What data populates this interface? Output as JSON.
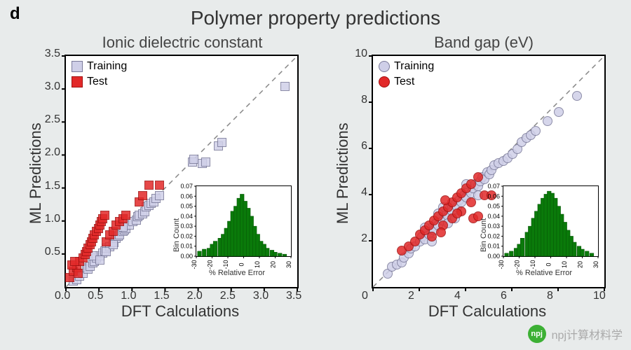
{
  "panel_letter": "d",
  "main_title": "Polymer property predictions",
  "colors": {
    "training_fill": "#cfcfe8",
    "training_stroke": "#7a7a99",
    "test_fill": "#e22929",
    "test_stroke": "#a01010",
    "diagonal": "#888",
    "hist_fill": "#0a7a0a",
    "hist_stroke": "#065006",
    "plot_bg": "#ffffff",
    "axis": "#000"
  },
  "left_plot": {
    "subtitle": "Ionic dielectric constant",
    "xlabel": "DFT Calculations",
    "ylabel": "ML Predictions",
    "xlim": [
      0,
      3.5
    ],
    "ylim": [
      0,
      3.5
    ],
    "xticks": [
      0.0,
      0.5,
      1.0,
      1.5,
      2.0,
      2.5,
      3.0,
      3.5
    ],
    "yticks": [
      0.5,
      1.0,
      1.5,
      2.0,
      2.5,
      3.0,
      3.5
    ],
    "marker": "square",
    "marker_size": 11,
    "legend": [
      "Training",
      "Test"
    ],
    "training": [
      [
        0.1,
        0.1
      ],
      [
        0.15,
        0.12
      ],
      [
        0.2,
        0.18
      ],
      [
        0.25,
        0.22
      ],
      [
        0.3,
        0.3
      ],
      [
        0.32,
        0.28
      ],
      [
        0.35,
        0.32
      ],
      [
        0.4,
        0.38
      ],
      [
        0.42,
        0.4
      ],
      [
        0.45,
        0.45
      ],
      [
        0.5,
        0.48
      ],
      [
        0.55,
        0.52
      ],
      [
        0.58,
        0.56
      ],
      [
        0.6,
        0.6
      ],
      [
        0.65,
        0.62
      ],
      [
        0.7,
        0.7
      ],
      [
        0.72,
        0.68
      ],
      [
        0.75,
        0.75
      ],
      [
        0.78,
        0.78
      ],
      [
        0.8,
        0.8
      ],
      [
        0.85,
        0.85
      ],
      [
        0.88,
        0.88
      ],
      [
        0.9,
        0.9
      ],
      [
        0.95,
        0.95
      ],
      [
        1.0,
        1.0
      ],
      [
        1.05,
        1.02
      ],
      [
        1.08,
        1.08
      ],
      [
        1.1,
        1.1
      ],
      [
        1.15,
        1.12
      ],
      [
        1.18,
        1.15
      ],
      [
        1.2,
        1.22
      ],
      [
        1.25,
        1.25
      ],
      [
        1.28,
        1.28
      ],
      [
        1.32,
        1.3
      ],
      [
        1.35,
        1.35
      ],
      [
        1.4,
        1.4
      ],
      [
        1.9,
        1.9
      ],
      [
        1.92,
        1.95
      ],
      [
        2.05,
        1.88
      ],
      [
        2.1,
        1.9
      ],
      [
        2.3,
        2.15
      ],
      [
        2.35,
        2.2
      ],
      [
        3.3,
        3.05
      ],
      [
        0.4,
        0.48
      ],
      [
        0.5,
        0.42
      ],
      [
        0.6,
        0.55
      ],
      [
        0.7,
        0.65
      ],
      [
        0.85,
        0.92
      ]
    ],
    "test": [
      [
        0.05,
        0.15
      ],
      [
        0.1,
        0.25
      ],
      [
        0.15,
        0.3
      ],
      [
        0.18,
        0.22
      ],
      [
        0.2,
        0.4
      ],
      [
        0.25,
        0.45
      ],
      [
        0.28,
        0.5
      ],
      [
        0.3,
        0.55
      ],
      [
        0.32,
        0.6
      ],
      [
        0.35,
        0.65
      ],
      [
        0.38,
        0.7
      ],
      [
        0.4,
        0.75
      ],
      [
        0.42,
        0.8
      ],
      [
        0.45,
        0.85
      ],
      [
        0.48,
        0.9
      ],
      [
        0.5,
        0.95
      ],
      [
        0.52,
        1.0
      ],
      [
        0.55,
        1.05
      ],
      [
        0.58,
        1.1
      ],
      [
        0.6,
        0.7
      ],
      [
        0.65,
        0.8
      ],
      [
        0.7,
        0.85
      ],
      [
        0.75,
        0.95
      ],
      [
        0.8,
        1.0
      ],
      [
        0.85,
        1.05
      ],
      [
        0.9,
        1.1
      ],
      [
        1.1,
        1.3
      ],
      [
        1.15,
        1.4
      ],
      [
        1.25,
        1.55
      ],
      [
        1.4,
        1.55
      ],
      [
        0.08,
        0.35
      ],
      [
        0.12,
        0.4
      ]
    ],
    "inset": {
      "ylabel": "Bin Count",
      "xlabel": "% Relative Error",
      "xlim": [
        -30,
        30
      ],
      "ylim": [
        0,
        0.07
      ],
      "xticks": [
        -30,
        -20,
        -10,
        0,
        10,
        20,
        30
      ],
      "yticks": [
        0.0,
        0.01,
        0.02,
        0.03,
        0.04,
        0.05,
        0.06,
        0.07
      ],
      "bars": [
        [
          -28,
          0.005
        ],
        [
          -25,
          0.007
        ],
        [
          -22,
          0.008
        ],
        [
          -20,
          0.012
        ],
        [
          -18,
          0.015
        ],
        [
          -15,
          0.018
        ],
        [
          -13,
          0.022
        ],
        [
          -11,
          0.028
        ],
        [
          -9,
          0.035
        ],
        [
          -7,
          0.045
        ],
        [
          -5,
          0.05
        ],
        [
          -3,
          0.058
        ],
        [
          -1,
          0.062
        ],
        [
          1,
          0.055
        ],
        [
          3,
          0.048
        ],
        [
          5,
          0.04
        ],
        [
          7,
          0.03
        ],
        [
          9,
          0.022
        ],
        [
          11,
          0.015
        ],
        [
          13,
          0.012
        ],
        [
          15,
          0.008
        ],
        [
          18,
          0.006
        ],
        [
          20,
          0.004
        ],
        [
          23,
          0.003
        ],
        [
          26,
          0.002
        ]
      ],
      "bar_width": 2.5
    }
  },
  "right_plot": {
    "subtitle": "Band gap (eV)",
    "xlabel": "DFT Calculations",
    "ylabel": "ML Predictions",
    "xlim": [
      0,
      10
    ],
    "ylim": [
      0,
      10
    ],
    "xticks": [
      0,
      2,
      4,
      6,
      8,
      10
    ],
    "yticks": [
      2,
      4,
      6,
      8,
      10
    ],
    "marker": "circle",
    "marker_size": 12,
    "legend": [
      "Training",
      "Test"
    ],
    "training": [
      [
        0.6,
        0.6
      ],
      [
        0.8,
        0.9
      ],
      [
        1.0,
        1.0
      ],
      [
        1.2,
        1.1
      ],
      [
        1.3,
        1.3
      ],
      [
        1.5,
        1.5
      ],
      [
        1.6,
        1.7
      ],
      [
        1.8,
        1.8
      ],
      [
        2.0,
        2.0
      ],
      [
        2.1,
        2.2
      ],
      [
        2.2,
        2.1
      ],
      [
        2.3,
        2.4
      ],
      [
        2.4,
        2.3
      ],
      [
        2.5,
        2.6
      ],
      [
        2.6,
        2.5
      ],
      [
        2.7,
        2.8
      ],
      [
        2.8,
        2.7
      ],
      [
        2.9,
        3.0
      ],
      [
        3.0,
        2.9
      ],
      [
        3.1,
        3.2
      ],
      [
        3.2,
        3.1
      ],
      [
        3.3,
        3.4
      ],
      [
        3.4,
        3.3
      ],
      [
        3.5,
        3.6
      ],
      [
        3.6,
        3.5
      ],
      [
        3.7,
        3.8
      ],
      [
        3.8,
        3.7
      ],
      [
        3.9,
        4.0
      ],
      [
        4.0,
        3.9
      ],
      [
        4.1,
        4.2
      ],
      [
        4.2,
        4.1
      ],
      [
        4.3,
        4.3
      ],
      [
        4.4,
        4.5
      ],
      [
        4.5,
        4.4
      ],
      [
        4.6,
        4.6
      ],
      [
        4.7,
        4.8
      ],
      [
        4.8,
        4.7
      ],
      [
        4.9,
        5.0
      ],
      [
        5.0,
        4.9
      ],
      [
        5.1,
        5.1
      ],
      [
        5.2,
        5.3
      ],
      [
        5.4,
        5.4
      ],
      [
        5.6,
        5.5
      ],
      [
        5.8,
        5.6
      ],
      [
        6.0,
        5.8
      ],
      [
        6.2,
        6.0
      ],
      [
        6.4,
        6.3
      ],
      [
        6.6,
        6.5
      ],
      [
        6.8,
        6.6
      ],
      [
        7.0,
        6.8
      ],
      [
        7.5,
        7.2
      ],
      [
        8.0,
        7.6
      ],
      [
        8.8,
        8.3
      ],
      [
        2.2,
        2.6
      ],
      [
        2.5,
        2.0
      ],
      [
        3.0,
        3.5
      ],
      [
        3.5,
        3.0
      ],
      [
        4.0,
        4.5
      ],
      [
        4.5,
        4.0
      ],
      [
        2.8,
        3.2
      ],
      [
        3.2,
        2.8
      ]
    ],
    "test": [
      [
        1.2,
        1.6
      ],
      [
        1.5,
        1.8
      ],
      [
        1.8,
        2.0
      ],
      [
        2.0,
        2.3
      ],
      [
        2.2,
        2.5
      ],
      [
        2.4,
        2.7
      ],
      [
        2.5,
        2.2
      ],
      [
        2.6,
        2.9
      ],
      [
        2.8,
        3.1
      ],
      [
        3.0,
        2.7
      ],
      [
        3.0,
        3.3
      ],
      [
        3.2,
        3.5
      ],
      [
        3.4,
        3.0
      ],
      [
        3.4,
        3.7
      ],
      [
        3.6,
        3.9
      ],
      [
        3.8,
        3.3
      ],
      [
        3.8,
        4.1
      ],
      [
        4.0,
        4.3
      ],
      [
        4.2,
        3.7
      ],
      [
        4.2,
        4.5
      ],
      [
        4.5,
        4.8
      ],
      [
        4.8,
        4.0
      ],
      [
        4.3,
        3.0
      ],
      [
        5.1,
        4.0
      ],
      [
        3.1,
        3.8
      ],
      [
        2.9,
        2.4
      ],
      [
        3.6,
        3.2
      ],
      [
        4.5,
        3.1
      ]
    ],
    "inset": {
      "ylabel": "Bin Count",
      "xlabel": "% Relative Error",
      "xlim": [
        -30,
        30
      ],
      "ylim": [
        0,
        0.07
      ],
      "xticks": [
        -30,
        -20,
        -10,
        0,
        10,
        20,
        30
      ],
      "yticks": [
        0.0,
        0.01,
        0.02,
        0.03,
        0.04,
        0.05,
        0.06,
        0.07
      ],
      "bars": [
        [
          -28,
          0.003
        ],
        [
          -25,
          0.005
        ],
        [
          -22,
          0.008
        ],
        [
          -20,
          0.012
        ],
        [
          -18,
          0.018
        ],
        [
          -15,
          0.024
        ],
        [
          -13,
          0.03
        ],
        [
          -11,
          0.038
        ],
        [
          -9,
          0.045
        ],
        [
          -7,
          0.052
        ],
        [
          -5,
          0.058
        ],
        [
          -3,
          0.062
        ],
        [
          -1,
          0.065
        ],
        [
          1,
          0.063
        ],
        [
          3,
          0.058
        ],
        [
          5,
          0.05
        ],
        [
          7,
          0.042
        ],
        [
          9,
          0.034
        ],
        [
          11,
          0.026
        ],
        [
          13,
          0.02
        ],
        [
          15,
          0.014
        ],
        [
          18,
          0.01
        ],
        [
          20,
          0.007
        ],
        [
          23,
          0.005
        ],
        [
          26,
          0.003
        ]
      ],
      "bar_width": 2.5
    }
  },
  "watermark": {
    "icon_text": "npj",
    "label": "npj计算材料学"
  }
}
